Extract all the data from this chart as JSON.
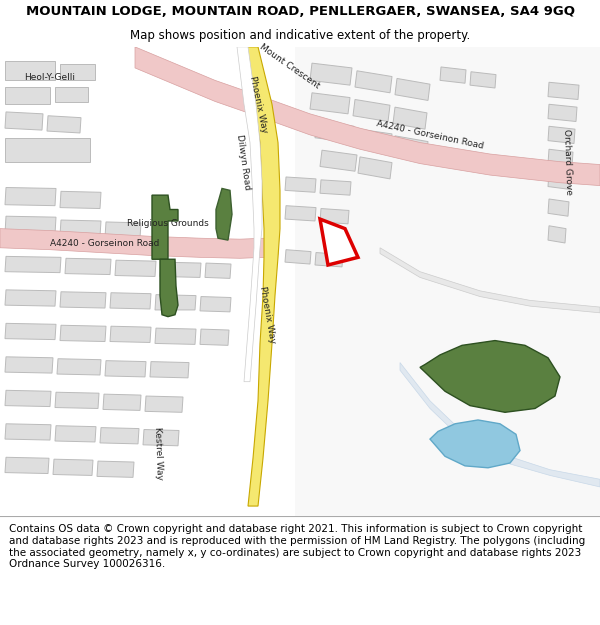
{
  "title_line1": "MOUNTAIN LODGE, MOUNTAIN ROAD, PENLLERGAER, SWANSEA, SA4 9GQ",
  "title_line2": "Map shows position and indicative extent of the property.",
  "footer_text": "Contains OS data © Crown copyright and database right 2021. This information is subject to Crown copyright and database rights 2023 and is reproduced with the permission of HM Land Registry. The polygons (including the associated geometry, namely x, y co-ordinates) are subject to Crown copyright and database rights 2023 Ordnance Survey 100026316.",
  "map_bg": "#f2f2f2",
  "road_pink_color": "#f0c8c8",
  "road_pink_border": "#d8a0a0",
  "road_yellow_color": "#f5e870",
  "road_yellow_border": "#c8a800",
  "building_color": "#dedede",
  "building_border": "#bbbbbb",
  "green_color": "#5a8040",
  "blue_color": "#90c8e0",
  "plot_outline": "#dd0000",
  "plot_fill": "#ffffff"
}
